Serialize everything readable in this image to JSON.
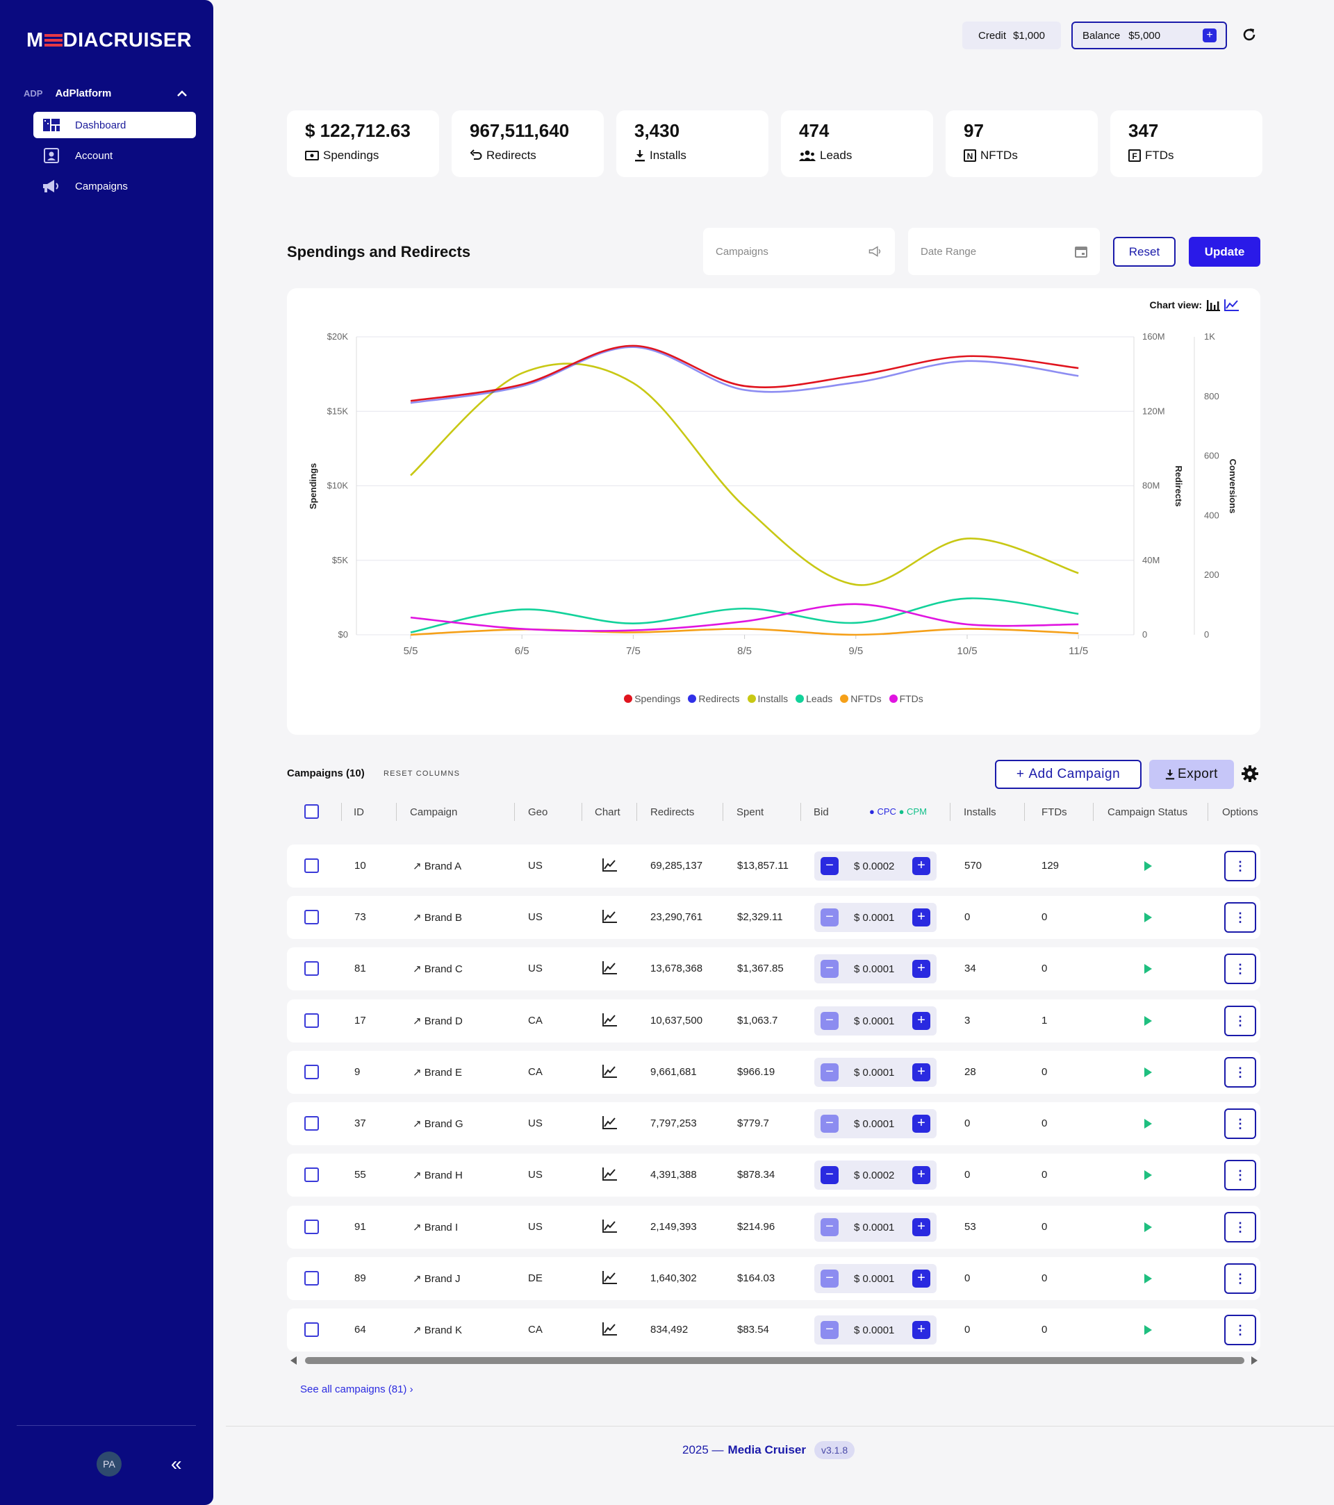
{
  "brand": {
    "logo_pre": "M",
    "logo_post": "DIACRUISER"
  },
  "platform": {
    "tag": "ADP",
    "name": "AdPlatform"
  },
  "nav": [
    {
      "label": "Dashboard",
      "icon": "dashboard-icon",
      "active": true
    },
    {
      "label": "Account",
      "icon": "account-icon",
      "active": false
    },
    {
      "label": "Campaigns",
      "icon": "megaphone-icon",
      "active": false
    }
  ],
  "user": {
    "initials": "PA"
  },
  "topbar": {
    "credit_label": "Credit",
    "credit_value": "$1,000",
    "balance_label": "Balance",
    "balance_value": "$5,000"
  },
  "kpis": [
    {
      "value": "$ 122,712.63",
      "label": "Spendings",
      "icon": "money-icon"
    },
    {
      "value": "967,511,640",
      "label": "Redirects",
      "icon": "redirect-icon"
    },
    {
      "value": "3,430",
      "label": "Installs",
      "icon": "download-icon"
    },
    {
      "value": "474",
      "label": "Leads",
      "icon": "users-icon"
    },
    {
      "value": "97",
      "label": "NFTDs",
      "icon": "n-box-icon"
    },
    {
      "value": "347",
      "label": "FTDs",
      "icon": "f-box-icon"
    }
  ],
  "section": {
    "title": "Spendings and Redirects",
    "campaigns_placeholder": "Campaigns",
    "date_placeholder": "Date Range",
    "reset": "Reset",
    "update": "Update",
    "chart_view_label": "Chart view:"
  },
  "chart_data": {
    "type": "line",
    "x": [
      "5/5",
      "6/5",
      "7/5",
      "8/5",
      "9/5",
      "10/5",
      "11/5"
    ],
    "axes": {
      "left": {
        "label": "Spendings",
        "ticks": [
          "$0",
          "$5K",
          "$10K",
          "$15K",
          "$20K"
        ],
        "range": [
          0,
          20000
        ]
      },
      "right1": {
        "label": "Redirects",
        "ticks": [
          "0",
          "40M",
          "80M",
          "120M",
          "160M"
        ],
        "range": [
          0,
          160000000
        ]
      },
      "right2": {
        "label": "Conversions",
        "ticks": [
          "0",
          "200",
          "400",
          "600",
          "800",
          "1K"
        ],
        "range": [
          0,
          1000
        ]
      }
    },
    "grid": true,
    "legend_position": "bottom",
    "series": [
      {
        "name": "Spendings",
        "axis": "left",
        "color": "#e0141e",
        "values": [
          15700,
          16800,
          19400,
          16700,
          17400,
          18700,
          17900
        ]
      },
      {
        "name": "Redirects",
        "axis": "right1",
        "color": "#3030e8",
        "values": [
          124500000,
          133500000,
          154500000,
          131500000,
          135500000,
          147000000,
          139000000
        ]
      },
      {
        "name": "Installs",
        "axis": "right2",
        "color": "#c8c814",
        "values": [
          535,
          878,
          845,
          430,
          168,
          323,
          207
        ]
      },
      {
        "name": "Leads",
        "axis": "right2",
        "color": "#12d29a",
        "values": [
          8,
          85,
          38,
          88,
          40,
          122,
          70
        ]
      },
      {
        "name": "NFTDs",
        "axis": "right2",
        "color": "#f5a019",
        "values": [
          0,
          18,
          8,
          20,
          0,
          20,
          5
        ]
      },
      {
        "name": "FTDs",
        "axis": "right2",
        "color": "#e014e0",
        "values": [
          58,
          20,
          15,
          45,
          103,
          35,
          35
        ]
      }
    ]
  },
  "table": {
    "title": "Campaigns (10)",
    "reset_columns": "RESET COLUMNS",
    "add_label": "Add Campaign",
    "export_label": "Export",
    "headers": {
      "id": "ID",
      "campaign": "Campaign",
      "geo": "Geo",
      "chart": "Chart",
      "redirects": "Redirects",
      "spent": "Spent",
      "bid": "Bid",
      "cpc": "CPC",
      "cpm": "CPM",
      "installs": "Installs",
      "ftds": "FTDs",
      "status": "Campaign Status",
      "options": "Options"
    },
    "rows": [
      {
        "id": "10",
        "name": "Brand A",
        "geo": "US",
        "redirects": "69,285,137",
        "spent": "$13,857.11",
        "bid": "$ 0.0002",
        "minus_enabled": true,
        "installs": "570",
        "ftds": "129"
      },
      {
        "id": "73",
        "name": "Brand B",
        "geo": "US",
        "redirects": "23,290,761",
        "spent": "$2,329.11",
        "bid": "$ 0.0001",
        "minus_enabled": false,
        "installs": "0",
        "ftds": "0"
      },
      {
        "id": "81",
        "name": "Brand C",
        "geo": "US",
        "redirects": "13,678,368",
        "spent": "$1,367.85",
        "bid": "$ 0.0001",
        "minus_enabled": false,
        "installs": "34",
        "ftds": "0"
      },
      {
        "id": "17",
        "name": "Brand D",
        "geo": "CA",
        "redirects": "10,637,500",
        "spent": "$1,063.7",
        "bid": "$ 0.0001",
        "minus_enabled": false,
        "installs": "3",
        "ftds": "1"
      },
      {
        "id": "9",
        "name": "Brand E",
        "geo": "CA",
        "redirects": "9,661,681",
        "spent": "$966.19",
        "bid": "$ 0.0001",
        "minus_enabled": false,
        "installs": "28",
        "ftds": "0"
      },
      {
        "id": "37",
        "name": "Brand G",
        "geo": "US",
        "redirects": "7,797,253",
        "spent": "$779.7",
        "bid": "$ 0.0001",
        "minus_enabled": false,
        "installs": "0",
        "ftds": "0"
      },
      {
        "id": "55",
        "name": "Brand H",
        "geo": "US",
        "redirects": "4,391,388",
        "spent": "$878.34",
        "bid": "$ 0.0002",
        "minus_enabled": true,
        "installs": "0",
        "ftds": "0"
      },
      {
        "id": "91",
        "name": "Brand I",
        "geo": "US",
        "redirects": "2,149,393",
        "spent": "$214.96",
        "bid": "$ 0.0001",
        "minus_enabled": false,
        "installs": "53",
        "ftds": "0"
      },
      {
        "id": "89",
        "name": "Brand J",
        "geo": "DE",
        "redirects": "1,640,302",
        "spent": "$164.03",
        "bid": "$ 0.0001",
        "minus_enabled": false,
        "installs": "0",
        "ftds": "0"
      },
      {
        "id": "64",
        "name": "Brand K",
        "geo": "CA",
        "redirects": "834,492",
        "spent": "$83.54",
        "bid": "$ 0.0001",
        "minus_enabled": false,
        "installs": "0",
        "ftds": "0"
      }
    ],
    "see_all": "See all campaigns (81)"
  },
  "footer": {
    "year": "2025 —",
    "name": "Media Cruiser",
    "version": "v3.1.8"
  },
  "colors": {
    "sidebar": "#0a0a80",
    "accent": "#2a1ae8",
    "play": "#1fbf7f",
    "minus_active": "#2a2ae0",
    "minus_disabled": "#8c8cf0"
  }
}
